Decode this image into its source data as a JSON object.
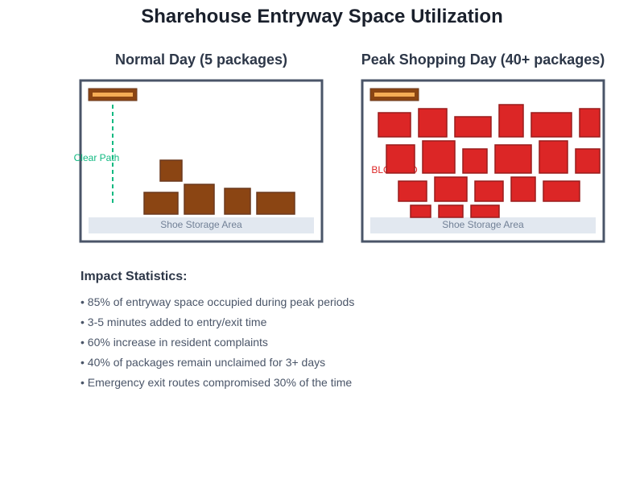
{
  "title": "Sharehouse Entryway Space Utilization",
  "panels": {
    "normal": {
      "title": "Normal Day (5 packages)",
      "path_label": "Clear Path",
      "storage_label": "Shoe Storage Area"
    },
    "peak": {
      "title": "Peak Shopping Day (40+ packages)",
      "blocked_label": "BLOCKED",
      "storage_label": "Shoe Storage Area"
    }
  },
  "stats": {
    "heading": "Impact Statistics:",
    "items": [
      "• 85% of entryway space occupied during peak periods",
      "• 3-5 minutes added to entry/exit time",
      "• 60% increase in resident complaints",
      "• 40% of packages remain unclaimed for 3+ days",
      "• Emergency exit routes compromised 30% of the time"
    ]
  },
  "colors": {
    "frame": "#4a5568",
    "package_normal": "#8b4513",
    "package_peak": "#dc2626",
    "clear_path": "#10b981",
    "blocked_text": "#dc2626",
    "mat": "#8b4513",
    "mat_stripe": "#f6ad55",
    "storage": "#e2e8f0"
  }
}
